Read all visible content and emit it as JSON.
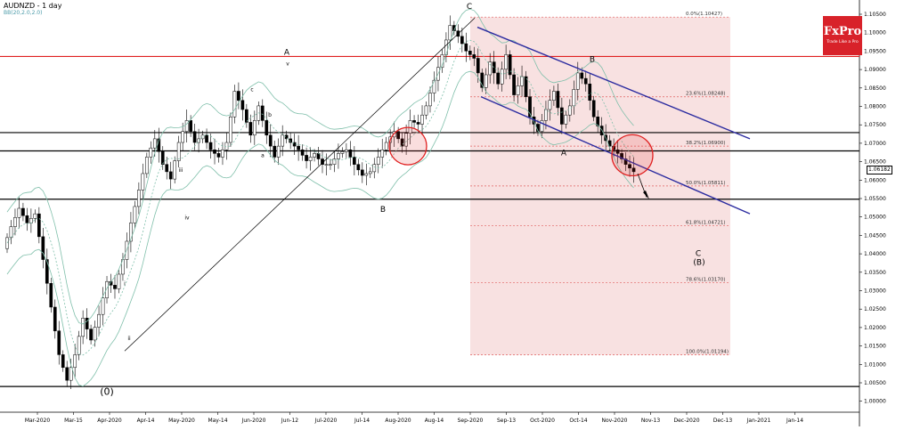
{
  "header": {
    "symbol_title": "AUDNZD - 1 day",
    "indicator_label": "BB(20,2.0,2.0)"
  },
  "brand": {
    "name": "FxPro",
    "tagline": "Trade Like a Pro",
    "color": "#d8222a"
  },
  "last_price": "1.06182",
  "chart_data": {
    "type": "candlestick",
    "x_tick_labels": [
      "Mar-2020",
      "Mar-15",
      "Apr-2020",
      "Apr-14",
      "May-2020",
      "May-14",
      "Jun-2020",
      "Jun-12",
      "Jul-2020",
      "Jul-14",
      "Aug-2020",
      "Aug-14",
      "Sep-2020",
      "Sep-13",
      "Oct-2020",
      "Oct-14",
      "Nov-2020",
      "Nov-13",
      "Dec-2020",
      "Dec-13",
      "Jan-2021",
      "Jan-14"
    ],
    "y_ticks": [
      "1.10500",
      "1.10000",
      "1.09500",
      "1.09000",
      "1.08500",
      "1.08000",
      "1.07500",
      "1.07000",
      "1.06500",
      "1.06000",
      "1.05500",
      "1.05000",
      "1.04500",
      "1.04000",
      "1.03500",
      "1.03000",
      "1.02500",
      "1.02000",
      "1.01500",
      "1.01000",
      "1.00500",
      "1.00000"
    ],
    "ylim": [
      0.9975,
      1.1065
    ],
    "price_path": [
      1.041,
      1.047,
      1.052,
      1.048,
      1.0505,
      1.038,
      1.025,
      1.012,
      1.005,
      1.012,
      1.022,
      1.016,
      1.023,
      1.032,
      1.03,
      1.038,
      1.048,
      1.057,
      1.066,
      1.071,
      1.064,
      1.06,
      1.07,
      1.076,
      1.07,
      1.072,
      1.068,
      1.066,
      1.07,
      1.084,
      1.079,
      1.072,
      1.08,
      1.072,
      1.066,
      1.072,
      1.07,
      1.068,
      1.065,
      1.067,
      1.064,
      1.064,
      1.067,
      1.068,
      1.064,
      1.061,
      1.062,
      1.066,
      1.07,
      1.073,
      1.069,
      1.076,
      1.075,
      1.08,
      1.087,
      1.094,
      1.102,
      1.099,
      1.095,
      1.093,
      1.085,
      1.092,
      1.086,
      1.094,
      1.083,
      1.088,
      1.077,
      1.073,
      1.079,
      1.084,
      1.075,
      1.08,
      1.089,
      1.086,
      1.077,
      1.072,
      1.069,
      1.067,
      1.064,
      1.062
    ],
    "horizontal_lines": [
      {
        "level": 1.0935,
        "color": "#e02020"
      },
      {
        "level": 1.0727,
        "color": "#000000"
      },
      {
        "level": 1.0677,
        "color": "#000000"
      },
      {
        "level": 1.0545,
        "color": "#000000"
      },
      {
        "level": 1.0033,
        "color": "#000000"
      }
    ],
    "fibonacci": [
      {
        "label": "0.0%(1.10427)",
        "level": 1.10427
      },
      {
        "label": "23.6%(1.08248)",
        "level": 1.08248
      },
      {
        "label": "38.2%(1.06900)",
        "level": 1.069
      },
      {
        "label": "50.0%(1.05811)",
        "level": 1.05811
      },
      {
        "label": "61.8%(1.04721)",
        "level": 1.04721
      },
      {
        "label": "78.6%(1.03170)",
        "level": 1.0317
      },
      {
        "label": "100.0%(1.01194)",
        "level": 1.01194
      }
    ],
    "wave_labels": [
      "(0)",
      "A",
      "B",
      "C",
      "(B)",
      "C",
      "A",
      "B",
      "i",
      "ii",
      "iii",
      "iv",
      "v",
      "a",
      "b",
      "c"
    ],
    "colors": {
      "bull": "#ffffff",
      "bear": "#000000",
      "band": "#7fbfaa",
      "channel": "#2c2ca0",
      "fib_zone": "#f2c9c9",
      "fib_line": "#e06060",
      "circle": "#e02020"
    }
  }
}
